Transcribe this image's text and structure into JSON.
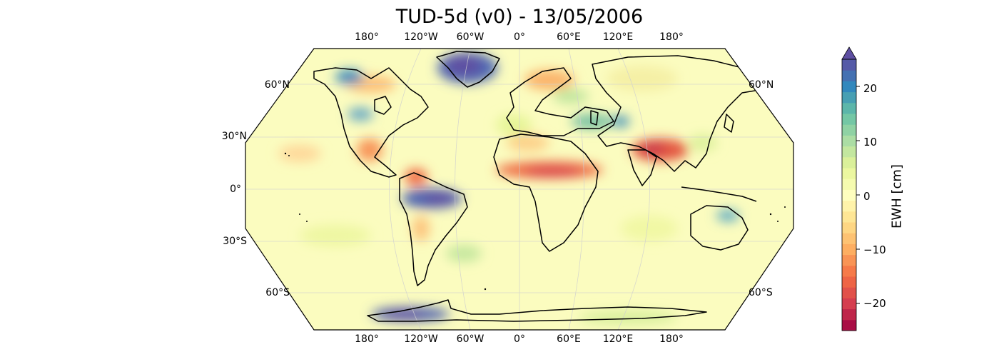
{
  "title": "TUD-5d (v0) - 13/05/2006",
  "map": {
    "projection": "Robinson",
    "variable": "EWH",
    "lon_labels": [
      "180°",
      "120°W",
      "60°W",
      "0°",
      "60°E",
      "120°E",
      "180°"
    ],
    "lat_labels_left": [
      "60°N",
      "30°N",
      "0°",
      "30°S",
      "60°S"
    ],
    "lat_labels_right": [
      "60°N",
      "60°S"
    ],
    "gridlines": true,
    "ocean_color": "#fbfcbf",
    "anomalies": [
      {
        "region": "Greenland",
        "ewh": 25
      },
      {
        "region": "Amazon Basin",
        "ewh": 25
      },
      {
        "region": "West Antarctica",
        "ewh": 25
      },
      {
        "region": "Alaska",
        "ewh": 15
      },
      {
        "region": "Hudson Bay / Canada",
        "ewh": 10
      },
      {
        "region": "Caspian Sea region",
        "ewh": 15
      },
      {
        "region": "Northern Australia",
        "ewh": 15
      },
      {
        "region": "Sahel",
        "ewh": -18
      },
      {
        "region": "Northern India / Ganges",
        "ewh": -20
      },
      {
        "region": "Orinoco / Venezuela",
        "ewh": -15
      },
      {
        "region": "Central America",
        "ewh": -12
      },
      {
        "region": "Scandinavia",
        "ewh": -8
      }
    ]
  },
  "colorbar": {
    "label": "EWH [cm]",
    "min": -25,
    "max": 25,
    "extend": "max",
    "ticks": [
      20,
      10,
      0,
      -10,
      -20
    ],
    "tick_labels": [
      "20",
      "10",
      "0",
      "−10",
      "−20"
    ],
    "colormap": "Spectral",
    "stops": [
      "#9e0142",
      "#d53e4f",
      "#f46d43",
      "#fdae61",
      "#fee08b",
      "#ffffbf",
      "#e6f598",
      "#abdda4",
      "#66c2a5",
      "#3288bd",
      "#5e4fa2"
    ]
  }
}
